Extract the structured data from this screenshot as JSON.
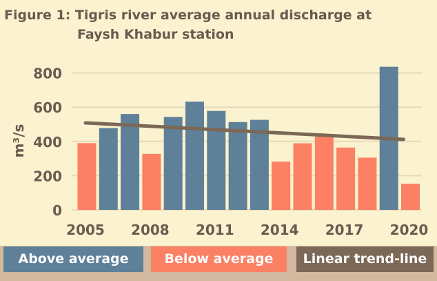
{
  "figure_title_line1": "Figure 1: Tigris river average annual discharge at",
  "figure_title_line2": "Faysh Khabur station",
  "colors": {
    "above": "#5f8099",
    "below": "#fb8064",
    "trend": "#7b6856",
    "background": "#fbf3cf",
    "frame": "#d2b9a0",
    "text": "#6b5a50"
  },
  "legend": {
    "above_label": "Above average",
    "below_label": "Below average",
    "trend_label": "Linear trend-line"
  },
  "chart_data": {
    "type": "bar",
    "title": "Figure 1: Tigris river average annual discharge at Faysh Khabur station",
    "ylabel": "m³/s",
    "ylim": [
      0,
      880
    ],
    "yticks": [
      0,
      200,
      400,
      600,
      800
    ],
    "xticks": [
      "2005",
      "2008",
      "2011",
      "2014",
      "2017",
      "2020"
    ],
    "grid": true,
    "legend_position": "bottom",
    "bars": [
      {
        "year": 2005,
        "value": 390,
        "class": "Below average"
      },
      {
        "year": 2006,
        "value": 478,
        "class": "Above average"
      },
      {
        "year": 2007,
        "value": 560,
        "class": "Above average"
      },
      {
        "year": 2008,
        "value": 327,
        "class": "Below average"
      },
      {
        "year": 2009,
        "value": 543,
        "class": "Above average"
      },
      {
        "year": 2010,
        "value": 632,
        "class": "Above average"
      },
      {
        "year": 2011,
        "value": 578,
        "class": "Above average"
      },
      {
        "year": 2012,
        "value": 513,
        "class": "Above average"
      },
      {
        "year": 2013,
        "value": 526,
        "class": "Above average"
      },
      {
        "year": 2014,
        "value": 282,
        "class": "Below average"
      },
      {
        "year": 2015,
        "value": 389,
        "class": "Below average"
      },
      {
        "year": 2016,
        "value": 428,
        "class": "Below average"
      },
      {
        "year": 2017,
        "value": 364,
        "class": "Below average"
      },
      {
        "year": 2018,
        "value": 305,
        "class": "Below average"
      },
      {
        "year": 2019,
        "value": 836,
        "class": "Above average"
      },
      {
        "year": 2020,
        "value": 153,
        "class": "Below average"
      }
    ],
    "trend_line": {
      "name": "Linear trend-line",
      "start": {
        "year": 2005,
        "value": 508
      },
      "end": {
        "year": 2020,
        "value": 412
      }
    }
  }
}
